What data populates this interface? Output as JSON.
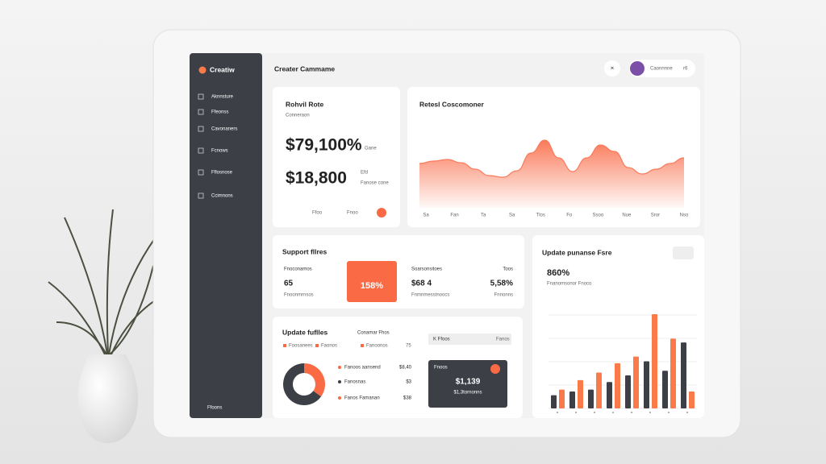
{
  "sidebar": {
    "brand": "Creatiw",
    "nav": [
      "Aknnsture",
      "Ffeonss",
      "Cavonaners",
      "Fcnows",
      "Fflosnose",
      "Ccimnons"
    ],
    "footer": "Ffoons"
  },
  "header": {
    "title": "Creater Cammame",
    "user": "Caonnnne",
    "badge": "r6"
  },
  "summary": {
    "title": "Rohvil Rote",
    "subtitle": "Conneraon",
    "value1": "$79,100%",
    "note1": "Gane",
    "value2": "$18,800",
    "note2a": "Efd",
    "note2b": "Fanose cone",
    "footer": [
      "Ffoo",
      "Fnoo"
    ]
  },
  "area_chart": {
    "type": "area",
    "title": "Retesl Coscomoner",
    "categories": [
      "Sa",
      "Fan",
      "Ta",
      "Sa",
      "Tlos",
      "Fo",
      "Ssoo",
      "Nue",
      "Sror",
      "Nso"
    ],
    "values": [
      55,
      58,
      60,
      56,
      48,
      40,
      38,
      46,
      68,
      84,
      62,
      45,
      62,
      78,
      70,
      50,
      42,
      48,
      55,
      62
    ],
    "ylim": [
      0,
      100
    ],
    "color": "#fa7a5a"
  },
  "support": {
    "title": "Support fllres",
    "highlight": "158%",
    "items": [
      {
        "label": "Fnoconamos",
        "value": "65",
        "caption": "Fnoonmrnsos"
      },
      {
        "label": "Soarsonsitoes",
        "value": "$68 4",
        "caption": "Fnmnmesstnoocs"
      },
      {
        "label": "Toos",
        "value": "5,58%",
        "caption": "Fnnonns"
      }
    ]
  },
  "update": {
    "title": "Update fuflles",
    "subtitle": "Conamar Fhos",
    "legend": [
      "Foosanees",
      "Faonos",
      "Fanoonos"
    ],
    "legend_value": "75",
    "search": "K Ffoos",
    "search_hint": "Fanos",
    "donut": {
      "type": "pie",
      "values": [
        35,
        65
      ],
      "colors": [
        "#fa6a45",
        "#3c3f46"
      ]
    },
    "list": [
      {
        "label": "Fanoos aansend",
        "value": "$8,40"
      },
      {
        "label": "Fanosnas",
        "value": "$3"
      },
      {
        "label": "Fanos Famanan",
        "value": "$38"
      }
    ],
    "card": {
      "title": "Fnoos",
      "value": "$1,139",
      "caption": "$1,3tornonns"
    }
  },
  "bar_chart": {
    "type": "bar",
    "title": "Update punanse Fsre",
    "value": "860%",
    "caption": "Fnanomsonor Fnoco",
    "ylim": [
      0,
      100
    ],
    "series": [
      {
        "color": "#3c3f46",
        "values": [
          14,
          18,
          20,
          28,
          35,
          50,
          40,
          70
        ]
      },
      {
        "color": "#fa7a4a",
        "values": [
          20,
          30,
          38,
          48,
          55,
          100,
          74,
          18
        ]
      }
    ]
  }
}
